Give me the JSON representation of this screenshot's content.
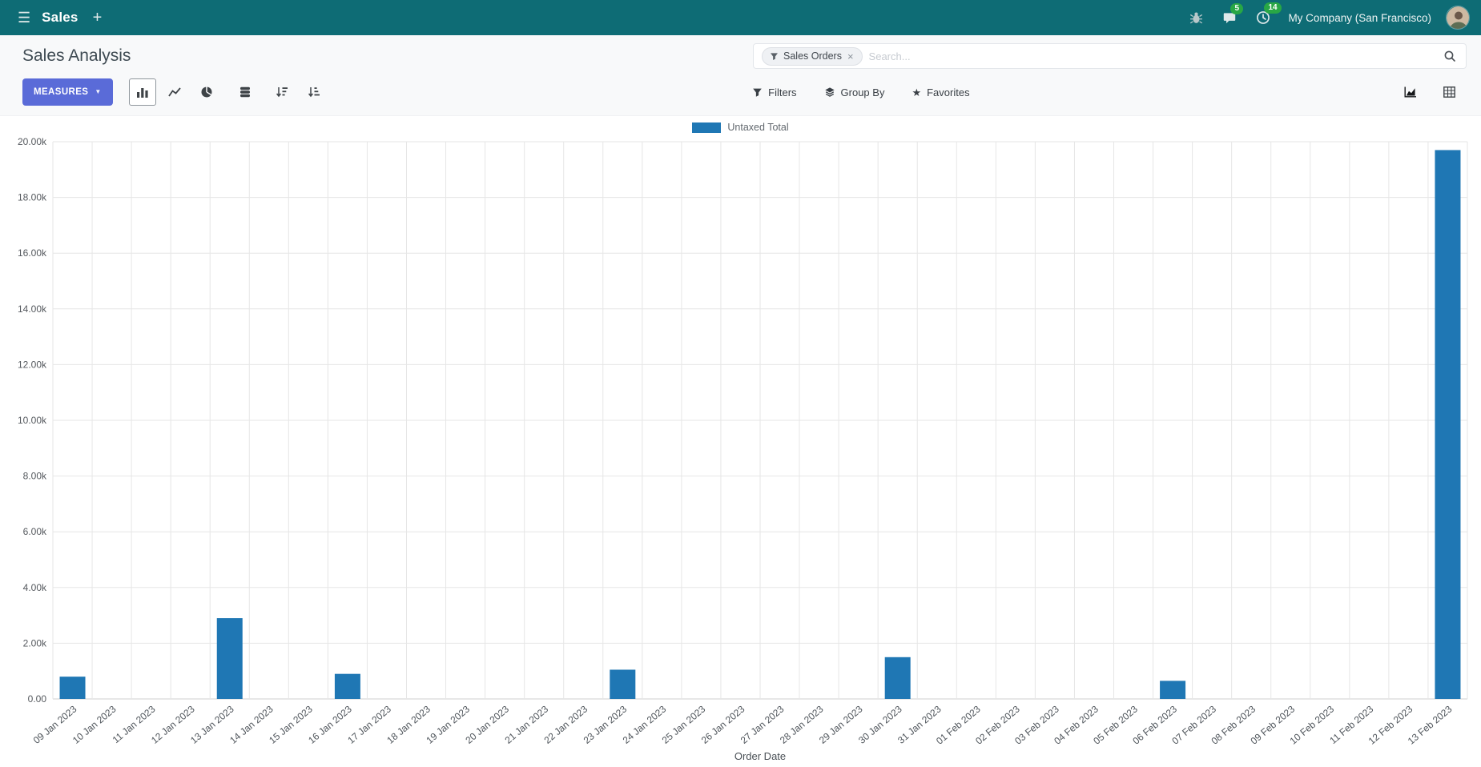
{
  "colors": {
    "navbar_bg": "#0e6c75",
    "primary_button": "#5a6bd8",
    "bar_color": "#1f77b4",
    "badge_green": "#28a745"
  },
  "icons": {
    "menu": "☰",
    "plus": "+",
    "caret_down": "▼",
    "facet_close": "×",
    "star": "★"
  },
  "navbar": {
    "app_title": "Sales",
    "messages_badge": "5",
    "activities_badge": "14",
    "company": "My Company (San Francisco)"
  },
  "control_panel": {
    "title": "Sales Analysis",
    "search": {
      "facet": "Sales Orders",
      "placeholder": "Search..."
    },
    "toolbar": {
      "measures_label": "MEASURES",
      "filters_label": "Filters",
      "group_by_label": "Group By",
      "favorites_label": "Favorites"
    }
  },
  "chart_data": {
    "type": "bar",
    "title": "",
    "xlabel": "Order Date",
    "ylabel": "",
    "ylim": [
      0,
      20000
    ],
    "ytick_step": 2000,
    "ytick_labels": [
      "0.00",
      "2.00k",
      "4.00k",
      "6.00k",
      "8.00k",
      "10.00k",
      "12.00k",
      "14.00k",
      "16.00k",
      "18.00k",
      "20.00k"
    ],
    "grid": true,
    "legend_position": "top",
    "categories": [
      "09 Jan 2023",
      "10 Jan 2023",
      "11 Jan 2023",
      "12 Jan 2023",
      "13 Jan 2023",
      "14 Jan 2023",
      "15 Jan 2023",
      "16 Jan 2023",
      "17 Jan 2023",
      "18 Jan 2023",
      "19 Jan 2023",
      "20 Jan 2023",
      "21 Jan 2023",
      "22 Jan 2023",
      "23 Jan 2023",
      "24 Jan 2023",
      "25 Jan 2023",
      "26 Jan 2023",
      "27 Jan 2023",
      "28 Jan 2023",
      "29 Jan 2023",
      "30 Jan 2023",
      "31 Jan 2023",
      "01 Feb 2023",
      "02 Feb 2023",
      "03 Feb 2023",
      "04 Feb 2023",
      "05 Feb 2023",
      "06 Feb 2023",
      "07 Feb 2023",
      "08 Feb 2023",
      "09 Feb 2023",
      "10 Feb 2023",
      "11 Feb 2023",
      "12 Feb 2023",
      "13 Feb 2023"
    ],
    "series": [
      {
        "name": "Untaxed Total",
        "color": "#1f77b4",
        "values": [
          800,
          0,
          0,
          0,
          2900,
          0,
          0,
          900,
          0,
          0,
          0,
          0,
          0,
          0,
          1050,
          0,
          0,
          0,
          0,
          0,
          0,
          1500,
          0,
          0,
          0,
          0,
          0,
          0,
          650,
          0,
          0,
          0,
          0,
          0,
          0,
          19700
        ]
      }
    ]
  }
}
